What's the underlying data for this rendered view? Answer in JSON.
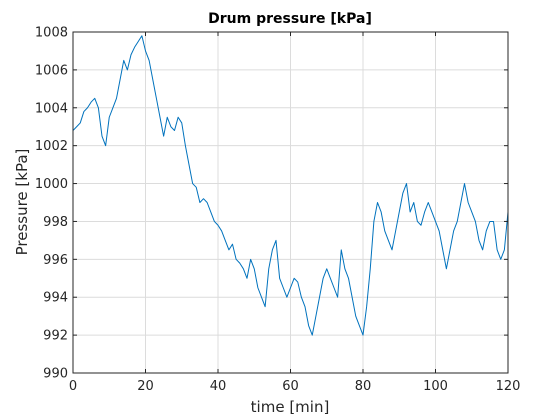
{
  "chart_data": {
    "type": "line",
    "title": "Drum pressure [kPa]",
    "xlabel": "time [min]",
    "ylabel": "Pressure [kPa]",
    "xlim": [
      0,
      120
    ],
    "ylim": [
      990,
      1008
    ],
    "xticks": [
      0,
      20,
      40,
      60,
      80,
      100,
      120
    ],
    "yticks": [
      990,
      992,
      994,
      996,
      998,
      1000,
      1002,
      1004,
      1006,
      1008
    ],
    "grid": true,
    "line_color": "#0072BD",
    "series": [
      {
        "x": [
          0,
          1,
          2,
          3,
          4,
          5,
          6,
          7,
          8,
          9,
          10,
          11,
          12,
          13,
          14,
          15,
          16,
          17,
          18,
          19,
          20,
          21,
          22,
          23,
          24,
          25,
          26,
          27,
          28,
          29,
          30,
          31,
          32,
          33,
          34,
          35,
          36,
          37,
          38,
          39,
          40,
          41,
          42,
          43,
          44,
          45,
          46,
          47,
          48,
          49,
          50,
          51,
          52,
          53,
          54,
          55,
          56,
          57,
          58,
          59,
          60,
          61,
          62,
          63,
          64,
          65,
          66,
          67,
          68,
          69,
          70,
          71,
          72,
          73,
          74,
          75,
          76,
          77,
          78,
          79,
          80,
          81,
          82,
          83,
          84,
          85,
          86,
          87,
          88,
          89,
          90,
          91,
          92,
          93,
          94,
          95,
          96,
          97,
          98,
          99,
          100,
          101,
          102,
          103,
          104,
          105,
          106,
          107,
          108,
          109,
          110,
          111,
          112,
          113,
          114,
          115,
          116,
          117,
          118,
          119,
          120
        ],
        "values": [
          1002.8,
          1003.0,
          1003.2,
          1003.8,
          1004.0,
          1004.3,
          1004.5,
          1004.0,
          1002.5,
          1002.0,
          1003.5,
          1004.0,
          1004.5,
          1005.5,
          1006.5,
          1006.0,
          1006.8,
          1007.2,
          1007.5,
          1007.8,
          1007.0,
          1006.5,
          1005.5,
          1004.5,
          1003.5,
          1002.5,
          1003.5,
          1003.0,
          1002.8,
          1003.5,
          1003.2,
          1002.0,
          1001.0,
          1000.0,
          999.8,
          999.0,
          999.2,
          999.0,
          998.5,
          998.0,
          997.8,
          997.5,
          997.0,
          996.5,
          996.8,
          996.0,
          995.8,
          995.5,
          995.0,
          996.0,
          995.5,
          994.5,
          994.0,
          993.5,
          995.5,
          996.5,
          997.0,
          995.0,
          994.5,
          994.0,
          994.5,
          995.0,
          994.8,
          994.0,
          993.5,
          992.5,
          992.0,
          993.0,
          994.0,
          995.0,
          995.5,
          995.0,
          994.5,
          994.0,
          996.5,
          995.5,
          995.0,
          994.0,
          993.0,
          992.5,
          992.0,
          993.5,
          995.5,
          998.0,
          999.0,
          998.5,
          997.5,
          997.0,
          996.5,
          997.5,
          998.5,
          999.5,
          1000.0,
          998.5,
          999.0,
          998.0,
          997.8,
          998.5,
          999.0,
          998.5,
          998.0,
          997.5,
          996.5,
          995.5,
          996.5,
          997.5,
          998.0,
          999.0,
          1000.0,
          999.0,
          998.5,
          998.0,
          997.0,
          996.5,
          997.5,
          998.0,
          998.0,
          996.5,
          996.0,
          996.5,
          998.5
        ]
      }
    ]
  }
}
